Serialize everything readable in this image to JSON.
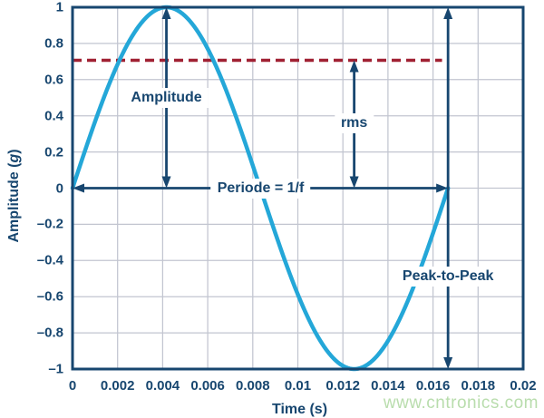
{
  "chart_data": {
    "type": "line",
    "title": "",
    "xlabel": "Time (s)",
    "ylabel_prefix": "Amplitude (",
    "ylabel_symbol": "g",
    "ylabel_suffix": ")",
    "xlim": [
      0,
      0.02
    ],
    "ylim": [
      -1,
      1
    ],
    "grid": true,
    "x_ticks": {
      "values": [
        0,
        0.002,
        0.004,
        0.006,
        0.008,
        0.01,
        0.012,
        0.014,
        0.016,
        0.018,
        0.02
      ],
      "labels": [
        "0",
        "0.002",
        "0.004",
        "0.006",
        "0.008",
        "0.01",
        "0.012",
        "0.014",
        "0.016",
        "0.018",
        "0.02"
      ]
    },
    "y_ticks": {
      "values": [
        1,
        0.8,
        0.6,
        0.4,
        0.2,
        0,
        -0.2,
        -0.4,
        -0.6,
        -0.8,
        -1
      ],
      "labels": [
        "1",
        "0.8",
        "0.6",
        "0.4",
        "0.2",
        "0",
        "–0.2",
        "–0.4",
        "–0.6",
        "–0.8",
        "–1"
      ]
    },
    "series": [
      {
        "name": "sine-wave",
        "signal": {
          "shape": "sine",
          "amplitude": 1,
          "frequency_hz": 60,
          "t_start": 0,
          "t_end": 0.0166667
        },
        "color": "#24a7d8",
        "sample_points": {
          "t": [
            0,
            0.001,
            0.002,
            0.003,
            0.004,
            0.004167,
            0.005,
            0.006,
            0.007,
            0.008,
            0.008333,
            0.009,
            0.01,
            0.011,
            0.012,
            0.0125,
            0.013,
            0.014,
            0.015,
            0.016,
            0.016667
          ],
          "v": [
            0,
            0.368,
            0.685,
            0.905,
            0.998,
            1,
            0.951,
            0.771,
            0.482,
            0.125,
            0,
            -0.249,
            -0.588,
            -0.845,
            -0.982,
            -1,
            -0.982,
            -0.845,
            -0.588,
            -0.249,
            0
          ]
        }
      }
    ],
    "reference_lines": [
      {
        "name": "rms-level",
        "y": 0.707,
        "x_from": 0,
        "x_to": 0.0164,
        "style": "dashed",
        "color": "#a02133"
      }
    ],
    "annotations": [
      {
        "name": "amplitude",
        "label": "Amplitude",
        "orientation": "vertical",
        "x": 0.0041667,
        "from": 0,
        "to": 1,
        "label_pos": 0.5
      },
      {
        "name": "rms",
        "label": "rms",
        "orientation": "vertical",
        "x": 0.0125,
        "from": 0,
        "to": 0.707,
        "label_pos": 0.36
      },
      {
        "name": "period",
        "label": "Periode = 1/f",
        "orientation": "horizontal",
        "y": 0,
        "from": 0,
        "to": 0.0166667,
        "label_pos": 0.00835
      },
      {
        "name": "peak-to-peak",
        "label": "Peak-to-Peak",
        "orientation": "vertical",
        "x": 0.0166667,
        "from": -1,
        "to": 1,
        "label_pos": -0.49
      }
    ],
    "palette": {
      "axis_and_text": "#17466f",
      "gridline": "#c2c5d0",
      "background": "#ffffff"
    }
  },
  "watermark": {
    "text": "www.cntronics.com",
    "color": "#b9ddad"
  }
}
